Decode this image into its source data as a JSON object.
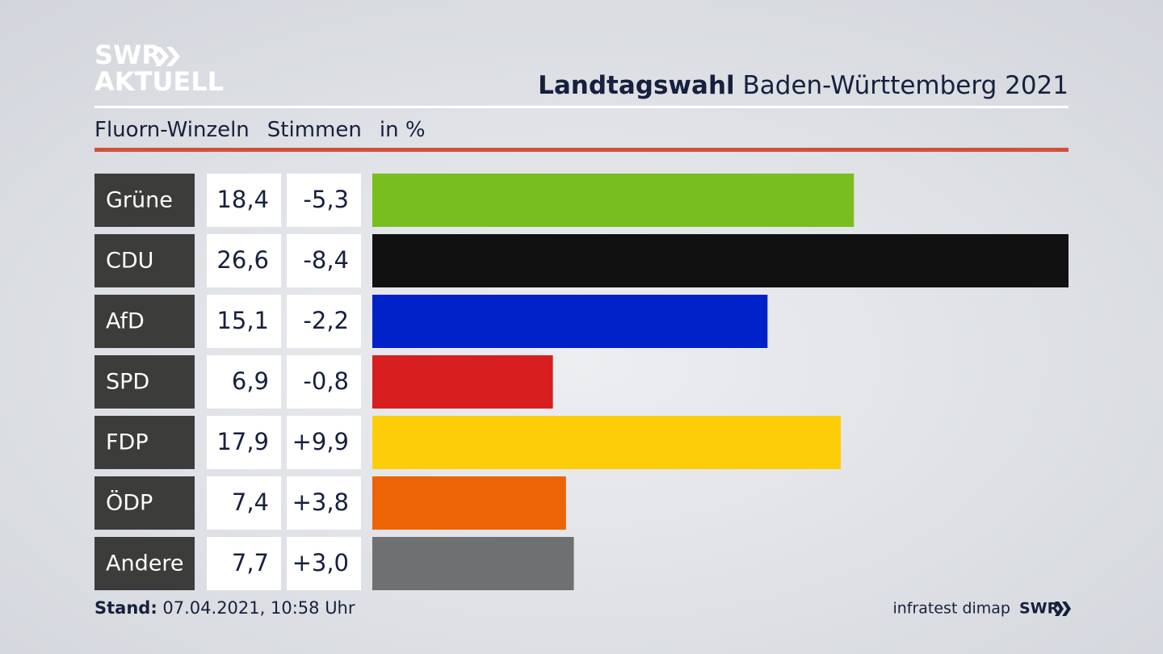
{
  "chart_data": {
    "type": "bar",
    "orientation": "horizontal",
    "logo": {
      "line1": "SWR",
      "line2": "AKTUELL"
    },
    "title_bold": "Landtagswahl",
    "title": "Baden-Württemberg 2021",
    "location": "Fluorn-Winzeln",
    "measure": "Stimmen",
    "unit": "in %",
    "categories": [
      "Grüne",
      "CDU",
      "AfD",
      "SPD",
      "FDP",
      "ÖDP",
      "Andere"
    ],
    "colors": [
      "#78be1e",
      "#111111",
      "#0022c8",
      "#d71f1f",
      "#fecd0a",
      "#ec6405",
      "#6f7072"
    ],
    "values": [
      18.4,
      26.6,
      15.1,
      6.9,
      17.9,
      7.4,
      7.7
    ],
    "value_labels": [
      "18,4",
      "26,6",
      "15,1",
      "6,9",
      "17,9",
      "7,4",
      "7,7"
    ],
    "changes": [
      -5.3,
      -8.4,
      -2.2,
      -0.8,
      9.9,
      3.8,
      3.0
    ],
    "change_labels": [
      "-5,3",
      "-8,4",
      "-2,2",
      "-0,8",
      "+9,9",
      "+3,8",
      "+3,0"
    ],
    "xlim": [
      0,
      26.6
    ],
    "footer": {
      "stand_label": "Stand:",
      "stand": "07.04.2021, 10:58 Uhr",
      "source": "infratest dimap",
      "brand": "SWR"
    }
  }
}
